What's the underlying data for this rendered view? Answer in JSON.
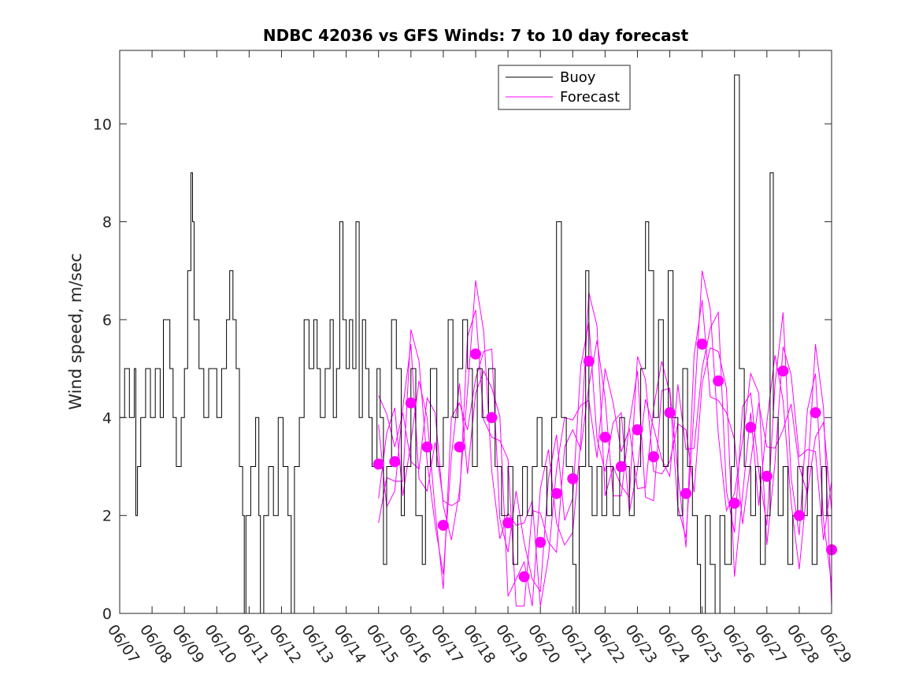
{
  "chart_data": {
    "type": "line",
    "title": "NDBC 42036 vs GFS Winds: 7 to 10 day forecast",
    "ylabel": "Wind speed, m/sec",
    "xlabel": "",
    "xlim": [
      0,
      22
    ],
    "ylim": [
      0,
      11.5
    ],
    "x_ticks": [
      0,
      1,
      2,
      3,
      4,
      5,
      6,
      7,
      8,
      9,
      10,
      11,
      12,
      13,
      14,
      15,
      16,
      17,
      18,
      19,
      20,
      21,
      22
    ],
    "x_tick_labels": [
      "06/07",
      "06/08",
      "06/09",
      "06/10",
      "06/11",
      "06/12",
      "06/13",
      "06/14",
      "06/15",
      "06/16",
      "06/17",
      "06/18",
      "06/19",
      "06/20",
      "06/21",
      "06/22",
      "06/23",
      "06/24",
      "06/25",
      "06/26",
      "06/27",
      "06/28",
      "06/29"
    ],
    "y_ticks": [
      0,
      2,
      4,
      6,
      8,
      10
    ],
    "y_tick_labels": [
      "0",
      "2",
      "4",
      "6",
      "8",
      "10"
    ],
    "grid": false,
    "legend_position": "top-center",
    "colors": {
      "buoy": "#000000",
      "forecast": "#ff00ff"
    },
    "series": [
      {
        "name": "Buoy",
        "color": "#000000",
        "points": [
          [
            0.0,
            4
          ],
          [
            0.15,
            5
          ],
          [
            0.3,
            4
          ],
          [
            0.45,
            5
          ],
          [
            0.5,
            2
          ],
          [
            0.55,
            3
          ],
          [
            0.65,
            4
          ],
          [
            0.8,
            5
          ],
          [
            0.95,
            4
          ],
          [
            1.1,
            5
          ],
          [
            1.25,
            4
          ],
          [
            1.35,
            6
          ],
          [
            1.55,
            5
          ],
          [
            1.65,
            4
          ],
          [
            1.75,
            3
          ],
          [
            1.9,
            4
          ],
          [
            2.0,
            5
          ],
          [
            2.1,
            7
          ],
          [
            2.2,
            9
          ],
          [
            2.25,
            8
          ],
          [
            2.3,
            6
          ],
          [
            2.45,
            5
          ],
          [
            2.6,
            4
          ],
          [
            2.75,
            5
          ],
          [
            2.9,
            5
          ],
          [
            3.0,
            4
          ],
          [
            3.15,
            5
          ],
          [
            3.3,
            6
          ],
          [
            3.4,
            7
          ],
          [
            3.5,
            6
          ],
          [
            3.6,
            5
          ],
          [
            3.7,
            3
          ],
          [
            3.8,
            2
          ],
          [
            3.85,
            0
          ],
          [
            3.9,
            2
          ],
          [
            4.05,
            3
          ],
          [
            4.2,
            4
          ],
          [
            4.3,
            2
          ],
          [
            4.35,
            0
          ],
          [
            4.45,
            2
          ],
          [
            4.6,
            3
          ],
          [
            4.75,
            2
          ],
          [
            4.9,
            4
          ],
          [
            5.05,
            3
          ],
          [
            5.2,
            2
          ],
          [
            5.3,
            0
          ],
          [
            5.4,
            3
          ],
          [
            5.55,
            4
          ],
          [
            5.7,
            6
          ],
          [
            5.85,
            5
          ],
          [
            6.0,
            6
          ],
          [
            6.1,
            5
          ],
          [
            6.2,
            4
          ],
          [
            6.35,
            5
          ],
          [
            6.5,
            6
          ],
          [
            6.6,
            4
          ],
          [
            6.7,
            5
          ],
          [
            6.8,
            8
          ],
          [
            6.9,
            6
          ],
          [
            7.0,
            5
          ],
          [
            7.1,
            6
          ],
          [
            7.2,
            5
          ],
          [
            7.3,
            8
          ],
          [
            7.4,
            4
          ],
          [
            7.5,
            6
          ],
          [
            7.6,
            5
          ],
          [
            7.7,
            4
          ],
          [
            7.8,
            3
          ],
          [
            7.95,
            5
          ],
          [
            8.05,
            4
          ],
          [
            8.15,
            1
          ],
          [
            8.25,
            3
          ],
          [
            8.4,
            6
          ],
          [
            8.55,
            5
          ],
          [
            8.7,
            2
          ],
          [
            8.8,
            3
          ],
          [
            9.0,
            5
          ],
          [
            9.15,
            2
          ],
          [
            9.35,
            1
          ],
          [
            9.45,
            3
          ],
          [
            9.6,
            5
          ],
          [
            9.8,
            3
          ],
          [
            10.0,
            4
          ],
          [
            10.15,
            6
          ],
          [
            10.3,
            4
          ],
          [
            10.45,
            5
          ],
          [
            10.6,
            6
          ],
          [
            10.75,
            5
          ],
          [
            10.9,
            3
          ],
          [
            11.05,
            5
          ],
          [
            11.2,
            4
          ],
          [
            11.4,
            5
          ],
          [
            11.6,
            3
          ],
          [
            11.8,
            2
          ],
          [
            12.0,
            3
          ],
          [
            12.15,
            1
          ],
          [
            12.3,
            2
          ],
          [
            12.45,
            3
          ],
          [
            12.6,
            2
          ],
          [
            12.75,
            3
          ],
          [
            12.9,
            4
          ],
          [
            13.05,
            3
          ],
          [
            13.2,
            2
          ],
          [
            13.35,
            4
          ],
          [
            13.5,
            8
          ],
          [
            13.65,
            4
          ],
          [
            13.8,
            3
          ],
          [
            14.0,
            1
          ],
          [
            14.1,
            0
          ],
          [
            14.2,
            3
          ],
          [
            14.4,
            7
          ],
          [
            14.5,
            3
          ],
          [
            14.6,
            2
          ],
          [
            14.75,
            3
          ],
          [
            14.9,
            2
          ],
          [
            15.05,
            3
          ],
          [
            15.25,
            2
          ],
          [
            15.45,
            4
          ],
          [
            15.6,
            3
          ],
          [
            15.75,
            2
          ],
          [
            15.9,
            3
          ],
          [
            16.1,
            5
          ],
          [
            16.25,
            8
          ],
          [
            16.35,
            7
          ],
          [
            16.5,
            4
          ],
          [
            16.65,
            6
          ],
          [
            16.8,
            3
          ],
          [
            16.95,
            7
          ],
          [
            17.1,
            4
          ],
          [
            17.25,
            2
          ],
          [
            17.4,
            5
          ],
          [
            17.55,
            3
          ],
          [
            17.7,
            2
          ],
          [
            17.85,
            1
          ],
          [
            17.95,
            0
          ],
          [
            18.1,
            2
          ],
          [
            18.25,
            1
          ],
          [
            18.4,
            0
          ],
          [
            18.55,
            2
          ],
          [
            18.7,
            1
          ],
          [
            18.9,
            3
          ],
          [
            19.0,
            11
          ],
          [
            19.15,
            5
          ],
          [
            19.3,
            3
          ],
          [
            19.5,
            2
          ],
          [
            19.65,
            3
          ],
          [
            19.8,
            1
          ],
          [
            19.95,
            2
          ],
          [
            20.1,
            9
          ],
          [
            20.2,
            4
          ],
          [
            20.35,
            2
          ],
          [
            20.5,
            3
          ],
          [
            20.65,
            1
          ],
          [
            20.8,
            2
          ],
          [
            20.95,
            3
          ],
          [
            21.1,
            2
          ],
          [
            21.25,
            3
          ],
          [
            21.4,
            1
          ],
          [
            21.55,
            2
          ],
          [
            21.7,
            3
          ],
          [
            21.85,
            2
          ],
          [
            22.0,
            3
          ]
        ]
      },
      {
        "name": "Forecast",
        "color": "#ff00ff",
        "points": [
          [
            8.0,
            3.05
          ],
          [
            8.5,
            3.1
          ],
          [
            9.0,
            4.3
          ],
          [
            9.5,
            3.4
          ],
          [
            10.0,
            1.8
          ],
          [
            10.5,
            3.4
          ],
          [
            11.0,
            5.3
          ],
          [
            11.5,
            4.0
          ],
          [
            12.0,
            1.85
          ],
          [
            12.5,
            0.75
          ],
          [
            13.0,
            1.45
          ],
          [
            13.5,
            2.45
          ],
          [
            14.0,
            2.75
          ],
          [
            14.5,
            5.15
          ],
          [
            15.0,
            3.6
          ],
          [
            15.5,
            3.0
          ],
          [
            16.0,
            3.75
          ],
          [
            16.5,
            3.2
          ],
          [
            17.0,
            4.1
          ],
          [
            17.5,
            2.45
          ],
          [
            18.0,
            5.5
          ],
          [
            18.5,
            4.75
          ],
          [
            19.0,
            2.25
          ],
          [
            19.5,
            3.8
          ],
          [
            20.0,
            2.8
          ],
          [
            20.5,
            4.95
          ],
          [
            21.0,
            2.0
          ],
          [
            21.5,
            4.1
          ],
          [
            22.0,
            1.3
          ]
        ]
      }
    ]
  }
}
